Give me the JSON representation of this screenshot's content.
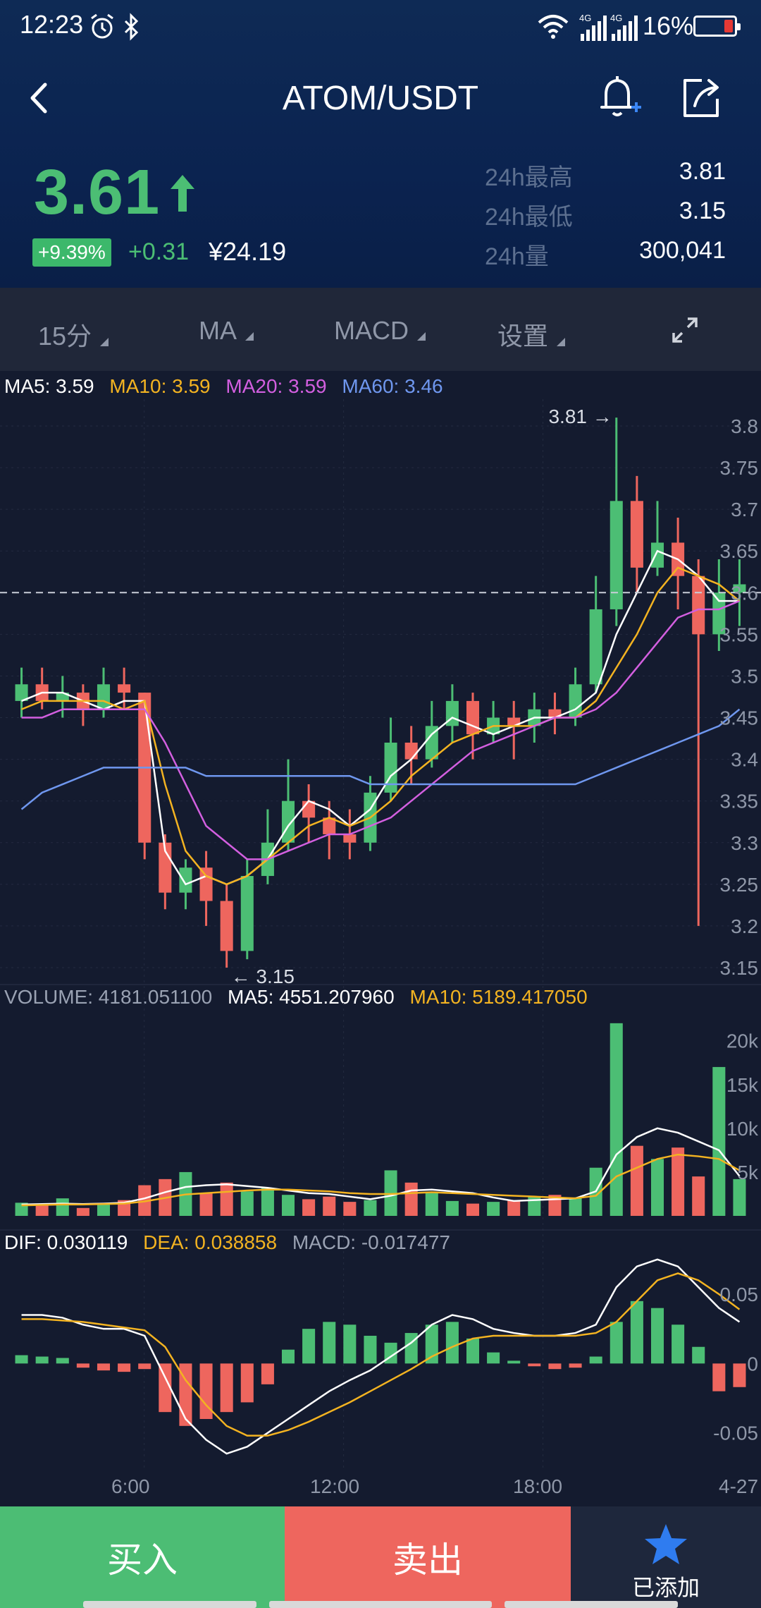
{
  "status_bar": {
    "time": "12:23",
    "battery": "16%",
    "net1": "4G",
    "net2": "4G",
    "icons": [
      "alarm-icon",
      "bluetooth-icon",
      "wifi-icon",
      "signal-icon",
      "battery-icon"
    ]
  },
  "nav": {
    "title": "ATOM/USDT",
    "icons": [
      "back-arrow-icon",
      "bell-plus-icon",
      "share-icon"
    ]
  },
  "ticker": {
    "price": "3.61",
    "change_pct": "+9.39%",
    "change_abs": "+0.31",
    "cny": "¥24.19",
    "stats": [
      {
        "label": "24h最高",
        "value": "3.81"
      },
      {
        "label": "24h最低",
        "value": "3.15"
      },
      {
        "label": "24h量",
        "value": "300,041"
      }
    ]
  },
  "toolbar": {
    "interval": "15分",
    "indicator": "MA",
    "sub_indicator": "MACD",
    "settings": "设置"
  },
  "colors": {
    "up": "#4cbe74",
    "down": "#ee665e",
    "ma5": "#ffffff",
    "ma10": "#f3b321",
    "ma20": "#d35fe0",
    "ma60": "#6f97ef",
    "bg": "#141b2f"
  },
  "main_legend": {
    "ma5": "MA5: 3.59",
    "ma10": "MA10: 3.59",
    "ma20": "MA20: 3.59",
    "ma60": "MA60: 3.46"
  },
  "volume_legend": {
    "volume": "VOLUME: 4181.051100",
    "ma5": "MA5: 4551.207960",
    "ma10": "MA10: 5189.417050"
  },
  "macd_legend": {
    "dif": "DIF: 0.030119",
    "dea": "DEA: 0.038858",
    "macd": "MACD: -0.017477"
  },
  "bottom_bar": {
    "buy": "买入",
    "sell": "卖出",
    "favorite": "已添加"
  },
  "chart_data": [
    {
      "type": "candlestick",
      "title": "",
      "y_ticks": [
        "3.8",
        "3.75",
        "3.7",
        "3.65",
        "3.6",
        "3.55",
        "3.5",
        "3.45",
        "3.4",
        "3.35",
        "3.3",
        "3.25",
        "3.2",
        "3.15"
      ],
      "ylim": [
        3.15,
        3.8
      ],
      "x_ticks": [
        "6:00",
        "12:00",
        "18:00",
        "4-27"
      ],
      "high_marker": "3.81 →",
      "low_marker": "← 3.15",
      "last_price": 3.6,
      "series": [
        {
          "name": "MA5",
          "values": [
            3.47,
            3.48,
            3.48,
            3.47,
            3.46,
            3.47,
            3.47,
            3.29,
            3.25,
            3.26,
            3.25,
            3.26,
            3.28,
            3.32,
            3.35,
            3.34,
            3.32,
            3.34,
            3.38,
            3.4,
            3.43,
            3.45,
            3.44,
            3.43,
            3.44,
            3.45,
            3.45,
            3.46,
            3.48,
            3.55,
            3.6,
            3.65,
            3.64,
            3.62,
            3.59,
            3.59
          ]
        },
        {
          "name": "MA10",
          "values": [
            3.46,
            3.47,
            3.47,
            3.47,
            3.47,
            3.46,
            3.47,
            3.37,
            3.29,
            3.26,
            3.25,
            3.26,
            3.28,
            3.3,
            3.32,
            3.33,
            3.32,
            3.33,
            3.35,
            3.38,
            3.4,
            3.42,
            3.43,
            3.44,
            3.44,
            3.44,
            3.45,
            3.45,
            3.47,
            3.51,
            3.55,
            3.6,
            3.63,
            3.62,
            3.61,
            3.59
          ]
        },
        {
          "name": "MA20",
          "values": [
            3.45,
            3.45,
            3.46,
            3.46,
            3.46,
            3.46,
            3.46,
            3.42,
            3.37,
            3.32,
            3.3,
            3.28,
            3.28,
            3.29,
            3.3,
            3.31,
            3.31,
            3.32,
            3.33,
            3.35,
            3.37,
            3.39,
            3.41,
            3.42,
            3.43,
            3.44,
            3.45,
            3.45,
            3.46,
            3.48,
            3.51,
            3.54,
            3.57,
            3.58,
            3.58,
            3.59
          ]
        },
        {
          "name": "MA60",
          "values": [
            3.34,
            3.36,
            3.37,
            3.38,
            3.39,
            3.39,
            3.39,
            3.39,
            3.39,
            3.38,
            3.38,
            3.38,
            3.38,
            3.38,
            3.38,
            3.38,
            3.38,
            3.37,
            3.37,
            3.37,
            3.37,
            3.37,
            3.37,
            3.37,
            3.37,
            3.37,
            3.37,
            3.37,
            3.38,
            3.39,
            3.4,
            3.41,
            3.42,
            3.43,
            3.44,
            3.46
          ]
        }
      ],
      "candles": [
        [
          3.47,
          3.49,
          3.51,
          3.45
        ],
        [
          3.49,
          3.47,
          3.51,
          3.46
        ],
        [
          3.47,
          3.48,
          3.5,
          3.45
        ],
        [
          3.48,
          3.46,
          3.49,
          3.44
        ],
        [
          3.46,
          3.49,
          3.51,
          3.45
        ],
        [
          3.49,
          3.48,
          3.51,
          3.46
        ],
        [
          3.48,
          3.3,
          3.48,
          3.28
        ],
        [
          3.3,
          3.24,
          3.31,
          3.22
        ],
        [
          3.24,
          3.27,
          3.28,
          3.22
        ],
        [
          3.27,
          3.23,
          3.29,
          3.2
        ],
        [
          3.23,
          3.17,
          3.25,
          3.15
        ],
        [
          3.17,
          3.26,
          3.28,
          3.16
        ],
        [
          3.26,
          3.3,
          3.34,
          3.25
        ],
        [
          3.3,
          3.35,
          3.4,
          3.29
        ],
        [
          3.35,
          3.33,
          3.37,
          3.3
        ],
        [
          3.33,
          3.31,
          3.35,
          3.28
        ],
        [
          3.31,
          3.3,
          3.34,
          3.28
        ],
        [
          3.3,
          3.36,
          3.38,
          3.29
        ],
        [
          3.36,
          3.42,
          3.45,
          3.35
        ],
        [
          3.42,
          3.4,
          3.44,
          3.37
        ],
        [
          3.4,
          3.44,
          3.47,
          3.39
        ],
        [
          3.44,
          3.47,
          3.49,
          3.42
        ],
        [
          3.47,
          3.43,
          3.48,
          3.4
        ],
        [
          3.43,
          3.45,
          3.47,
          3.42
        ],
        [
          3.45,
          3.44,
          3.47,
          3.4
        ],
        [
          3.44,
          3.46,
          3.48,
          3.42
        ],
        [
          3.46,
          3.45,
          3.48,
          3.43
        ],
        [
          3.45,
          3.49,
          3.51,
          3.44
        ],
        [
          3.49,
          3.58,
          3.62,
          3.48
        ],
        [
          3.58,
          3.71,
          3.81,
          3.56
        ],
        [
          3.71,
          3.63,
          3.74,
          3.6
        ],
        [
          3.63,
          3.66,
          3.71,
          3.62
        ],
        [
          3.66,
          3.62,
          3.69,
          3.58
        ],
        [
          3.62,
          3.55,
          3.64,
          3.2
        ],
        [
          3.55,
          3.6,
          3.64,
          3.53
        ],
        [
          3.6,
          3.61,
          3.64,
          3.56
        ]
      ]
    },
    {
      "type": "bar",
      "title": "",
      "y_ticks": [
        "20k",
        "15k",
        "10k",
        "5k"
      ],
      "ylim": [
        0,
        24000
      ],
      "series": [
        {
          "name": "VOLUME",
          "values": [
            1500,
            1200,
            2000,
            900,
            1400,
            1800,
            3500,
            4200,
            5000,
            2600,
            3800,
            2800,
            3200,
            2400,
            1900,
            2200,
            1600,
            1800,
            5200,
            3800,
            2600,
            1700,
            1400,
            1600,
            1800,
            2200,
            2400,
            2100,
            5500,
            22000,
            8000,
            6500,
            7800,
            4500,
            17000,
            4200
          ]
        },
        {
          "name": "MA5",
          "values": [
            1300,
            1350,
            1400,
            1350,
            1400,
            1500,
            2000,
            2700,
            3300,
            3500,
            3600,
            3400,
            3200,
            2900,
            2600,
            2500,
            2200,
            1900,
            2300,
            2900,
            3000,
            2800,
            2600,
            2100,
            1700,
            1800,
            1900,
            2000,
            2800,
            7000,
            9000,
            10000,
            9500,
            8500,
            7500,
            4550
          ]
        },
        {
          "name": "MA10",
          "values": [
            1200,
            1250,
            1300,
            1300,
            1350,
            1400,
            1650,
            2050,
            2450,
            2600,
            2750,
            2900,
            3000,
            3000,
            2900,
            2800,
            2600,
            2500,
            2500,
            2600,
            2700,
            2600,
            2500,
            2400,
            2300,
            2200,
            2100,
            2000,
            2300,
            4500,
            5500,
            6500,
            7000,
            6800,
            6500,
            5190
          ]
        }
      ]
    },
    {
      "type": "bar",
      "title": "",
      "y_ticks": [
        "0.05",
        "0",
        "-0.05"
      ],
      "ylim": [
        -0.07,
        0.08
      ],
      "series": [
        {
          "name": "MACD",
          "values": [
            0.006,
            0.005,
            0.004,
            -0.003,
            -0.005,
            -0.006,
            -0.004,
            -0.035,
            -0.045,
            -0.04,
            -0.035,
            -0.028,
            -0.015,
            0.01,
            0.025,
            0.03,
            0.028,
            0.02,
            0.015,
            0.022,
            0.028,
            0.03,
            0.018,
            0.008,
            0.002,
            -0.002,
            -0.004,
            -0.003,
            0.005,
            0.03,
            0.045,
            0.04,
            0.028,
            0.012,
            -0.02,
            -0.017
          ]
        },
        {
          "name": "DIF",
          "values": [
            0.035,
            0.035,
            0.033,
            0.028,
            0.025,
            0.025,
            0.02,
            -0.01,
            -0.04,
            -0.055,
            -0.065,
            -0.06,
            -0.05,
            -0.04,
            -0.03,
            -0.02,
            -0.012,
            -0.005,
            0.005,
            0.015,
            0.028,
            0.035,
            0.032,
            0.025,
            0.022,
            0.02,
            0.02,
            0.022,
            0.028,
            0.055,
            0.07,
            0.075,
            0.07,
            0.055,
            0.04,
            0.03
          ]
        },
        {
          "name": "DEA",
          "values": [
            0.032,
            0.032,
            0.031,
            0.03,
            0.028,
            0.026,
            0.024,
            0.012,
            -0.012,
            -0.03,
            -0.045,
            -0.052,
            -0.052,
            -0.048,
            -0.042,
            -0.035,
            -0.028,
            -0.02,
            -0.012,
            -0.004,
            0.005,
            0.012,
            0.018,
            0.02,
            0.02,
            0.02,
            0.02,
            0.02,
            0.022,
            0.03,
            0.045,
            0.06,
            0.065,
            0.06,
            0.05,
            0.039
          ]
        }
      ]
    }
  ]
}
